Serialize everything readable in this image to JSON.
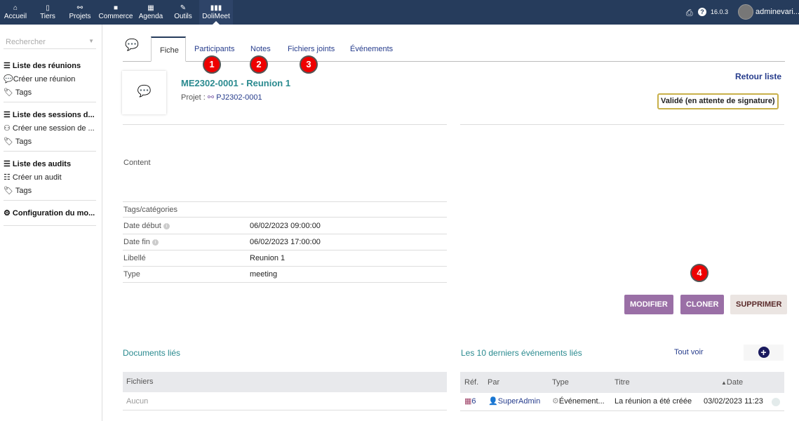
{
  "topbar": {
    "items": [
      {
        "label": "Accueil",
        "icon": "home-icon"
      },
      {
        "label": "Tiers",
        "icon": "building-icon"
      },
      {
        "label": "Projets",
        "icon": "project-icon"
      },
      {
        "label": "Commerce",
        "icon": "briefcase-icon"
      },
      {
        "label": "Agenda",
        "icon": "calendar-icon"
      },
      {
        "label": "Outils",
        "icon": "wrench-icon"
      },
      {
        "label": "DoliMeet",
        "icon": "dolimeet-icon"
      }
    ],
    "version": "16.0.3",
    "user": "adminevari..."
  },
  "sidebar": {
    "search_placeholder": "Rechercher",
    "groups": [
      {
        "items": [
          "Liste des réunions",
          "Créer une réunion",
          "Tags"
        ]
      },
      {
        "items": [
          "Liste des sessions d...",
          "Créer une session de ...",
          "Tags"
        ]
      },
      {
        "items": [
          "Liste des audits",
          "Créer un audit",
          "Tags"
        ]
      },
      {
        "items": [
          "Configuration du mo..."
        ]
      }
    ]
  },
  "tabs": [
    "Fiche",
    "Participants",
    "Notes",
    "Fichiers joints",
    "Événements"
  ],
  "badges": [
    "1",
    "2",
    "3",
    "4"
  ],
  "header": {
    "ref": "ME2302-0001 - Reunion 1",
    "project_label": "Projet :",
    "project": "PJ2302-0001",
    "back": "Retour liste",
    "status": "Validé (en attente de signature)"
  },
  "fields": {
    "content": "Content",
    "rows": [
      {
        "k": "Tags/catégories",
        "v": ""
      },
      {
        "k": "Date début",
        "v": "06/02/2023 09:00:00"
      },
      {
        "k": "Date fin",
        "v": "06/02/2023 17:00:00"
      },
      {
        "k": "Libellé",
        "v": "Reunion 1"
      },
      {
        "k": "Type",
        "v": "meeting"
      }
    ]
  },
  "actions": {
    "modify": "MODIFIER",
    "clone": "CLONER",
    "delete": "SUPPRIMER"
  },
  "docs": {
    "title": "Documents liés",
    "header": "Fichiers",
    "empty": "Aucun"
  },
  "events": {
    "title": "Les 10 derniers événements liés",
    "see_all": "Tout voir",
    "cols": [
      "Réf.",
      "Par",
      "Type",
      "Titre",
      "Date"
    ],
    "row": {
      "ref": "6",
      "by": "SuperAdmin",
      "type": "Événement...",
      "title": "La réunion a été créée",
      "date": "03/02/2023 11:23"
    }
  },
  "colors": {
    "topbar": "#263c5c",
    "accent": "#9a6fa6",
    "badge": "#ee0000",
    "title": "#2a8a8f"
  }
}
